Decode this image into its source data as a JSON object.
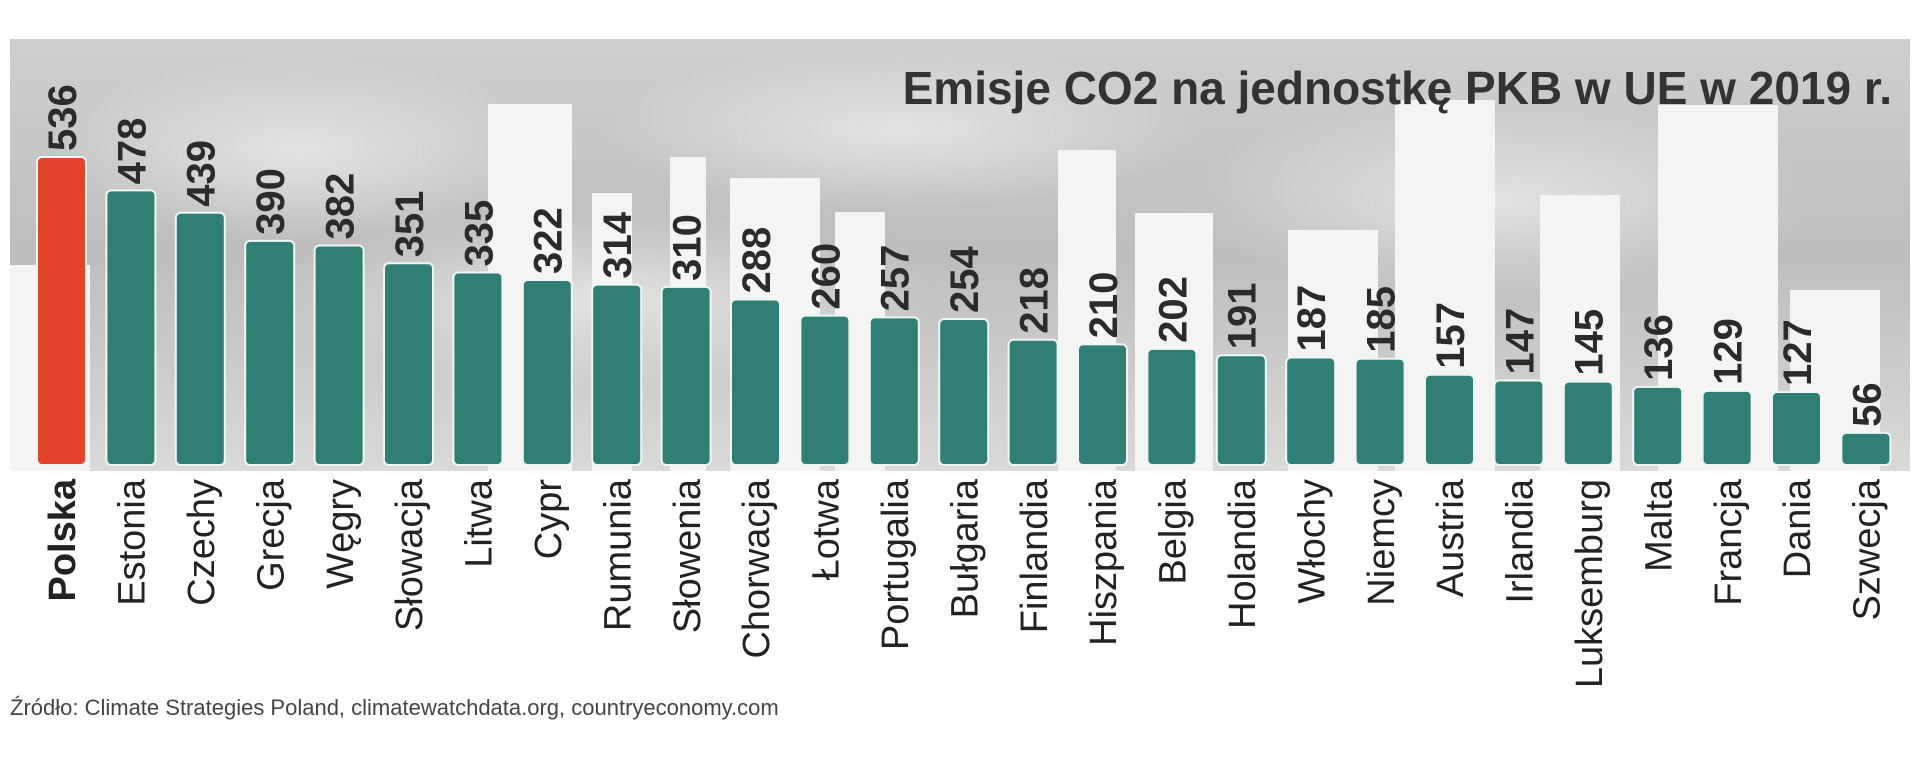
{
  "chart_data": {
    "type": "bar",
    "orientation": "vertical",
    "title": "Emisje CO2 na jednostkę PKB w UE w 2019 r.",
    "source": "Źródło: Climate Strategies Poland, climatewatchdata.org, countryeconomy.com",
    "categories": [
      "Polska",
      "Estonia",
      "Czechy",
      "Grecja",
      "Węgry",
      "Słowacja",
      "Litwa",
      "Cypr",
      "Rumunia",
      "Słowenia",
      "Chorwacja",
      "Łotwa",
      "Portugalia",
      "Bułgaria",
      "Finlandia",
      "Hiszpania",
      "Belgia",
      "Holandia",
      "Włochy",
      "Niemcy",
      "Austria",
      "Irlandia",
      "Luksemburg",
      "Malta",
      "Francja",
      "Dania",
      "Szwecja"
    ],
    "values": [
      536,
      478,
      439,
      390,
      382,
      351,
      335,
      322,
      314,
      310,
      288,
      260,
      257,
      254,
      218,
      210,
      202,
      191,
      187,
      185,
      157,
      147,
      145,
      136,
      129,
      127,
      56
    ],
    "highlight_category": "Polska",
    "ylim": [
      0,
      536
    ],
    "grid": false,
    "axes_visible": false,
    "data_labels": true,
    "colors": {
      "bar": "#2f7f74",
      "highlight": "#e3442b",
      "highlight_label": "#e3442b"
    }
  }
}
